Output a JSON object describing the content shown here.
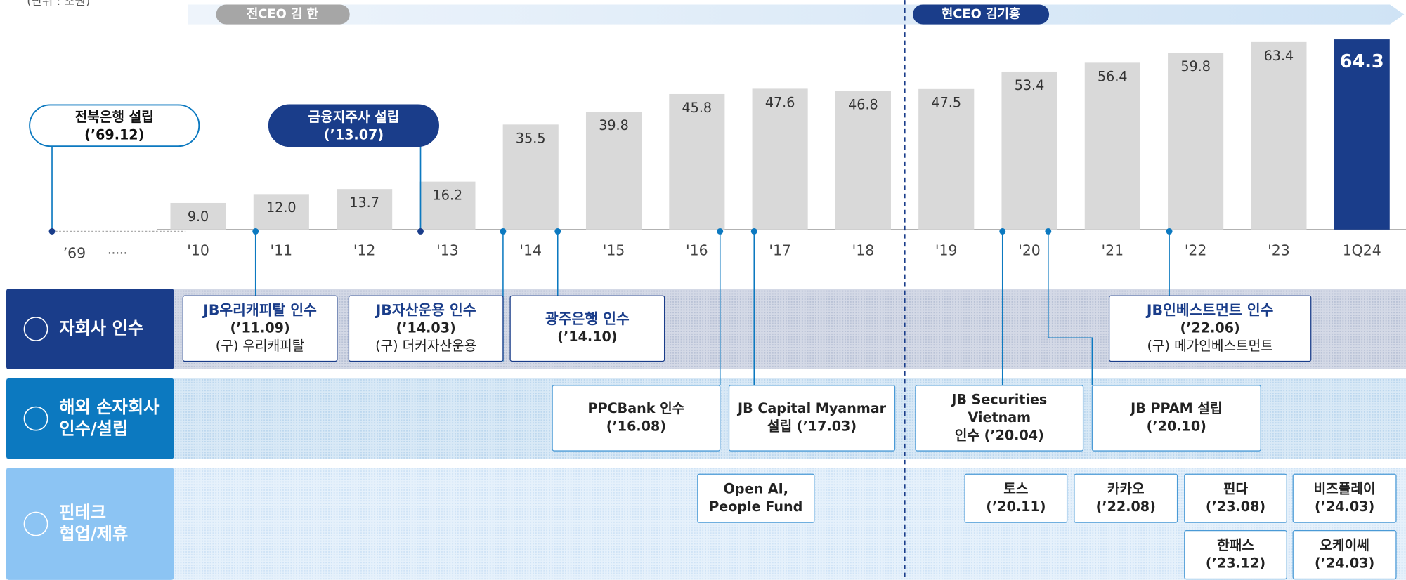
{
  "unit": "(단위 : 조원)",
  "ceo": [
    "전CEO 김 한",
    "현CEO 김기홍"
  ],
  "chart_data": {
    "type": "bar",
    "start_label": "’69",
    "ellipsis": "·····",
    "categories": [
      "'10",
      "'11",
      "'12",
      "'13",
      "'14",
      "'15",
      "'16",
      "'17",
      "'18",
      "'19",
      "'20",
      "'21",
      "'22",
      "'23",
      "1Q24"
    ],
    "values": [
      9.0,
      12.0,
      13.7,
      16.2,
      35.5,
      39.8,
      45.8,
      47.6,
      46.8,
      47.5,
      53.4,
      56.4,
      59.8,
      63.4,
      64.3
    ],
    "value_labels": [
      "9.0",
      "12.0",
      "13.7",
      "16.2",
      "35.5",
      "39.8",
      "45.8",
      "47.6",
      "46.8",
      "47.5",
      "53.4",
      "56.4",
      "59.8",
      "63.4",
      "64.3"
    ],
    "color": "#d9d9d9",
    "highlight_color": "#1a3d8a"
  },
  "milestones": [
    {
      "lines": [
        "전북은행 설립",
        "(’69.12)"
      ]
    },
    {
      "lines": [
        "금융지주사 설립",
        "(’13.07)"
      ]
    }
  ],
  "rows": [
    {
      "label": [
        "자회사 인수"
      ],
      "items": [
        {
          "lines": [
            "JB우리캐피탈 인수",
            "(’11.09)",
            "(구) 우리캐피탈"
          ]
        },
        {
          "lines": [
            "JB자산운용 인수",
            "(’14.03)",
            "(구) 더커자산운용"
          ]
        },
        {
          "lines": [
            "광주은행 인수",
            "(’14.10)"
          ]
        },
        {
          "lines": [
            "JB인베스트먼트 인수",
            "(’22.06)",
            "(구) 메가인베스트먼트"
          ]
        }
      ]
    },
    {
      "label": [
        "해외 손자회사",
        "인수/설립"
      ],
      "items": [
        {
          "lines": [
            "PPCBank 인수",
            "(’16.08)"
          ]
        },
        {
          "lines": [
            "JB Capital Myanmar",
            "설립 (’17.03)"
          ]
        },
        {
          "lines": [
            "JB Securities",
            "Vietnam",
            "인수 (’20.04)"
          ]
        },
        {
          "lines": [
            "JB PPAM 설립",
            "(’20.10)"
          ]
        }
      ]
    },
    {
      "label": [
        "핀테크",
        "협업/제휴"
      ],
      "items": [
        {
          "lines": [
            "Open AI,",
            "People Fund"
          ]
        },
        {
          "lines": [
            "토스",
            "(’20.11)"
          ]
        },
        {
          "lines": [
            "카카오",
            "(’22.08)"
          ]
        },
        {
          "lines": [
            "핀다",
            "(’23.08)"
          ]
        },
        {
          "lines": [
            "비즈플레이",
            "(’24.03)"
          ]
        },
        {
          "lines": [
            "한패스",
            "(’23.12)"
          ]
        },
        {
          "lines": [
            "오케이쎄",
            "(’24.03)"
          ]
        }
      ]
    }
  ]
}
